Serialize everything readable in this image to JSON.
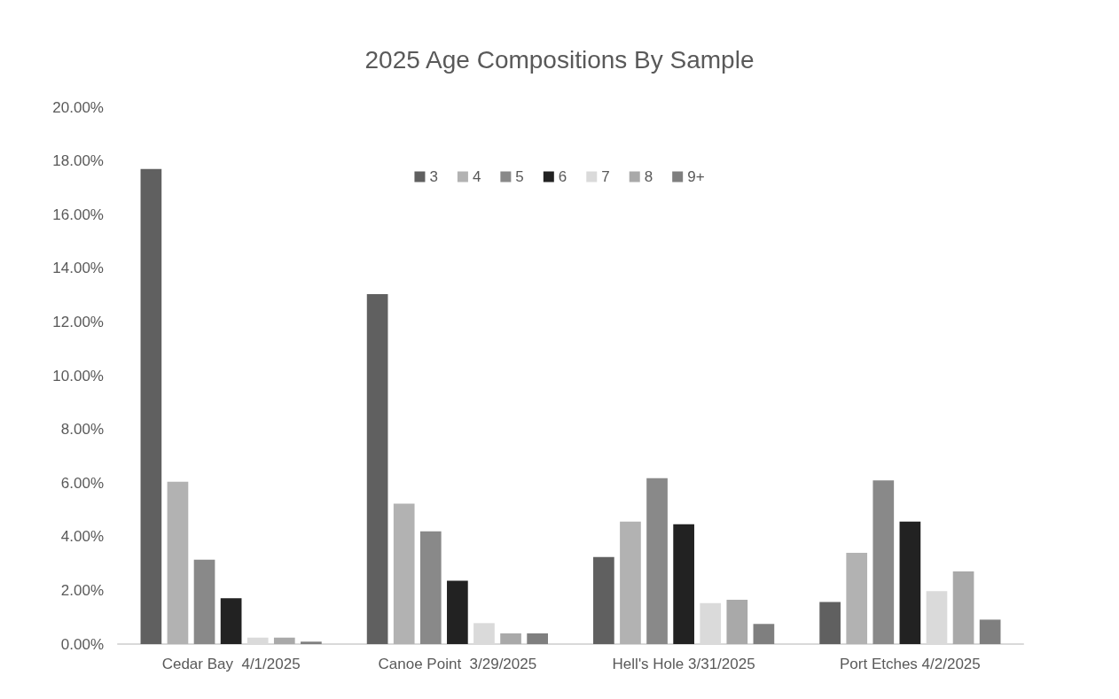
{
  "chart_data": {
    "type": "bar",
    "title": "2025 Age Compositions By Sample",
    "categories": [
      "Cedar Bay  4/1/2025",
      "Canoe Point  3/29/2025",
      "Hell's Hole 3/31/2025",
      "Port Etches 4/2/2025"
    ],
    "series": [
      {
        "name": "3",
        "color": "#606060",
        "values": [
          17.7,
          13.04,
          3.24,
          1.57
        ]
      },
      {
        "name": "4",
        "color": "#b2b2b2",
        "values": [
          6.05,
          5.23,
          4.56,
          3.4
        ]
      },
      {
        "name": "5",
        "color": "#898989",
        "values": [
          3.14,
          4.2,
          6.18,
          6.1
        ]
      },
      {
        "name": "6",
        "color": "#222222",
        "values": [
          1.71,
          2.36,
          4.46,
          4.56
        ]
      },
      {
        "name": "7",
        "color": "#dadada",
        "values": [
          0.24,
          0.78,
          1.53,
          1.97
        ]
      },
      {
        "name": "8",
        "color": "#a9a9a9",
        "values": [
          0.24,
          0.4,
          1.65,
          2.71
        ]
      },
      {
        "name": "9+",
        "color": "#7f7f7f",
        "values": [
          0.09,
          0.4,
          0.75,
          0.91
        ]
      }
    ],
    "ylim": [
      0,
      20
    ],
    "yticks": [
      {
        "value": 0,
        "label": "0.00%"
      },
      {
        "value": 2,
        "label": "2.00%"
      },
      {
        "value": 4,
        "label": "4.00%"
      },
      {
        "value": 6,
        "label": "6.00%"
      },
      {
        "value": 8,
        "label": "8.00%"
      },
      {
        "value": 10,
        "label": "10.00%"
      },
      {
        "value": 12,
        "label": "12.00%"
      },
      {
        "value": 14,
        "label": "14.00%"
      },
      {
        "value": 16,
        "label": "16.00%"
      },
      {
        "value": 18,
        "label": "18.00%"
      },
      {
        "value": 20,
        "label": "20.00%"
      }
    ],
    "grid": false,
    "legend": "top"
  }
}
